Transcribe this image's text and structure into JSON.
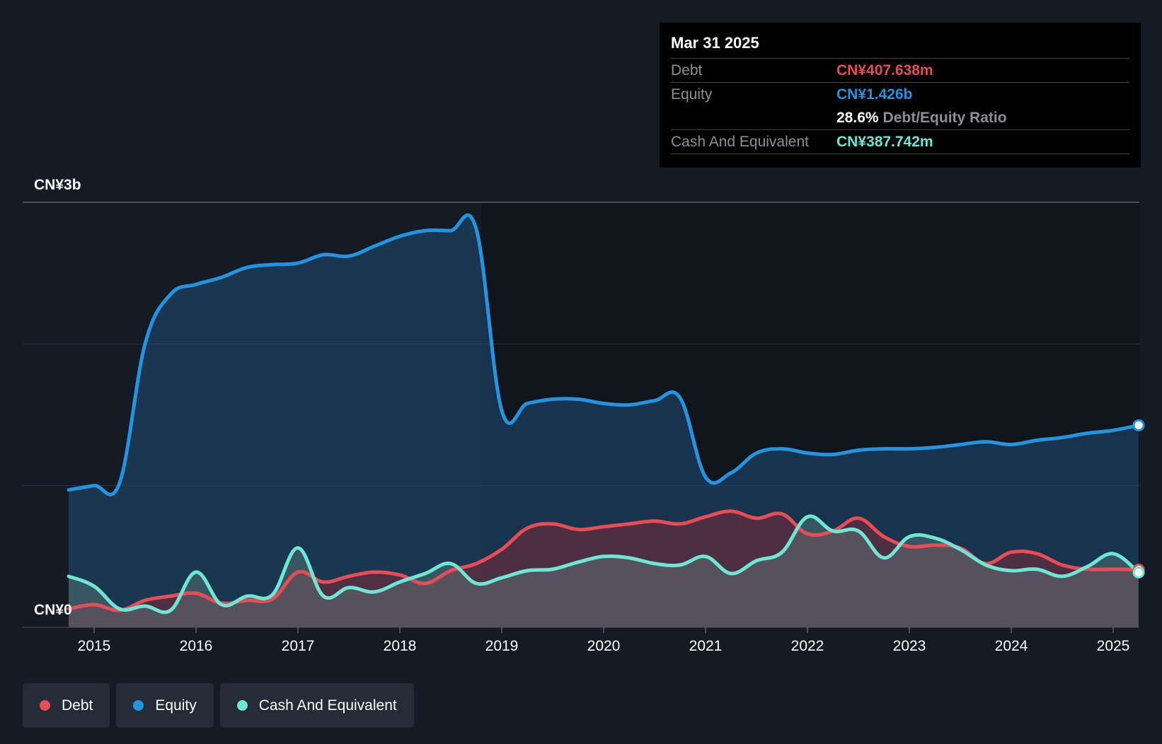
{
  "tooltip": {
    "date": "Mar 31 2025",
    "debt_label": "Debt",
    "debt_value": "CN¥407.638m",
    "equity_label": "Equity",
    "equity_value": "CN¥1.426b",
    "ratio_value": "28.6%",
    "ratio_label": "Debt/Equity Ratio",
    "cash_label": "Cash And Equivalent",
    "cash_value": "CN¥387.742m"
  },
  "y_axis": {
    "top_label": "CN¥3b",
    "bottom_label": "CN¥0"
  },
  "legend": {
    "debt": "Debt",
    "equity": "Equity",
    "cash": "Cash And Equivalent"
  },
  "colors": {
    "debt": "#e84c55",
    "equity": "#2394df",
    "cash": "#6ee6d4",
    "background": "#151b24",
    "plot_background_right": "#10141b"
  },
  "chart_data": {
    "type": "area",
    "ylim": [
      0,
      3000000000
    ],
    "xlim": [
      2014.7,
      2025.25
    ],
    "highlight_from": 2018.8,
    "x_ticks": [
      2015,
      2016,
      2017,
      2018,
      2019,
      2020,
      2021,
      2022,
      2023,
      2024,
      2025
    ],
    "x_tick_labels": [
      "2015",
      "2016",
      "2017",
      "2018",
      "2019",
      "2020",
      "2021",
      "2022",
      "2023",
      "2024",
      "2025"
    ],
    "series": [
      {
        "name": "Equity",
        "key": "equity",
        "x": [
          2014.75,
          2015.0,
          2015.25,
          2015.5,
          2015.75,
          2016.0,
          2016.25,
          2016.5,
          2016.75,
          2017.0,
          2017.25,
          2017.5,
          2017.75,
          2018.0,
          2018.25,
          2018.5,
          2018.75,
          2019.0,
          2019.25,
          2019.5,
          2019.75,
          2020.0,
          2020.25,
          2020.5,
          2020.75,
          2021.0,
          2021.25,
          2021.5,
          2021.75,
          2022.0,
          2022.25,
          2022.5,
          2022.75,
          2023.0,
          2023.25,
          2023.5,
          2023.75,
          2024.0,
          2024.25,
          2024.5,
          2024.75,
          2025.0,
          2025.25
        ],
        "values": [
          970000000,
          1000000000,
          1020000000,
          2000000000,
          2350000000,
          2420000000,
          2470000000,
          2540000000,
          2560000000,
          2570000000,
          2630000000,
          2620000000,
          2690000000,
          2760000000,
          2800000000,
          2800000000,
          2810000000,
          1530000000,
          1580000000,
          1610000000,
          1610000000,
          1580000000,
          1570000000,
          1600000000,
          1620000000,
          1060000000,
          1090000000,
          1230000000,
          1260000000,
          1230000000,
          1220000000,
          1250000000,
          1260000000,
          1260000000,
          1270000000,
          1290000000,
          1310000000,
          1290000000,
          1320000000,
          1340000000,
          1370000000,
          1390000000,
          1426000000
        ]
      },
      {
        "name": "Debt",
        "key": "debt",
        "x": [
          2014.75,
          2015.0,
          2015.25,
          2015.5,
          2015.75,
          2016.0,
          2016.25,
          2016.5,
          2016.75,
          2017.0,
          2017.25,
          2017.5,
          2017.75,
          2018.0,
          2018.25,
          2018.5,
          2018.75,
          2019.0,
          2019.25,
          2019.5,
          2019.75,
          2020.0,
          2020.25,
          2020.5,
          2020.75,
          2021.0,
          2021.25,
          2021.5,
          2021.75,
          2022.0,
          2022.25,
          2022.5,
          2022.75,
          2023.0,
          2023.25,
          2023.5,
          2023.75,
          2024.0,
          2024.25,
          2024.5,
          2024.75,
          2025.0,
          2025.25
        ],
        "values": [
          130000000,
          160000000,
          120000000,
          190000000,
          220000000,
          240000000,
          170000000,
          190000000,
          200000000,
          390000000,
          320000000,
          360000000,
          390000000,
          370000000,
          310000000,
          400000000,
          450000000,
          550000000,
          700000000,
          730000000,
          690000000,
          710000000,
          730000000,
          750000000,
          730000000,
          780000000,
          820000000,
          770000000,
          800000000,
          660000000,
          680000000,
          770000000,
          640000000,
          570000000,
          580000000,
          560000000,
          450000000,
          530000000,
          520000000,
          440000000,
          410000000,
          410000000,
          407638000
        ]
      },
      {
        "name": "Cash And Equivalent",
        "key": "cash",
        "x": [
          2014.75,
          2015.0,
          2015.25,
          2015.5,
          2015.75,
          2016.0,
          2016.25,
          2016.5,
          2016.75,
          2017.0,
          2017.25,
          2017.5,
          2017.75,
          2018.0,
          2018.25,
          2018.5,
          2018.75,
          2019.0,
          2019.25,
          2019.5,
          2019.75,
          2020.0,
          2020.25,
          2020.5,
          2020.75,
          2021.0,
          2021.25,
          2021.5,
          2021.75,
          2022.0,
          2022.25,
          2022.5,
          2022.75,
          2023.0,
          2023.25,
          2023.5,
          2023.75,
          2024.0,
          2024.25,
          2024.5,
          2024.75,
          2025.0,
          2025.25
        ],
        "values": [
          360000000,
          290000000,
          130000000,
          150000000,
          120000000,
          390000000,
          160000000,
          220000000,
          230000000,
          560000000,
          220000000,
          280000000,
          250000000,
          320000000,
          380000000,
          450000000,
          310000000,
          350000000,
          400000000,
          410000000,
          460000000,
          500000000,
          490000000,
          450000000,
          440000000,
          500000000,
          380000000,
          470000000,
          530000000,
          780000000,
          680000000,
          680000000,
          490000000,
          640000000,
          630000000,
          550000000,
          440000000,
          400000000,
          410000000,
          360000000,
          430000000,
          520000000,
          387742000
        ]
      }
    ]
  }
}
